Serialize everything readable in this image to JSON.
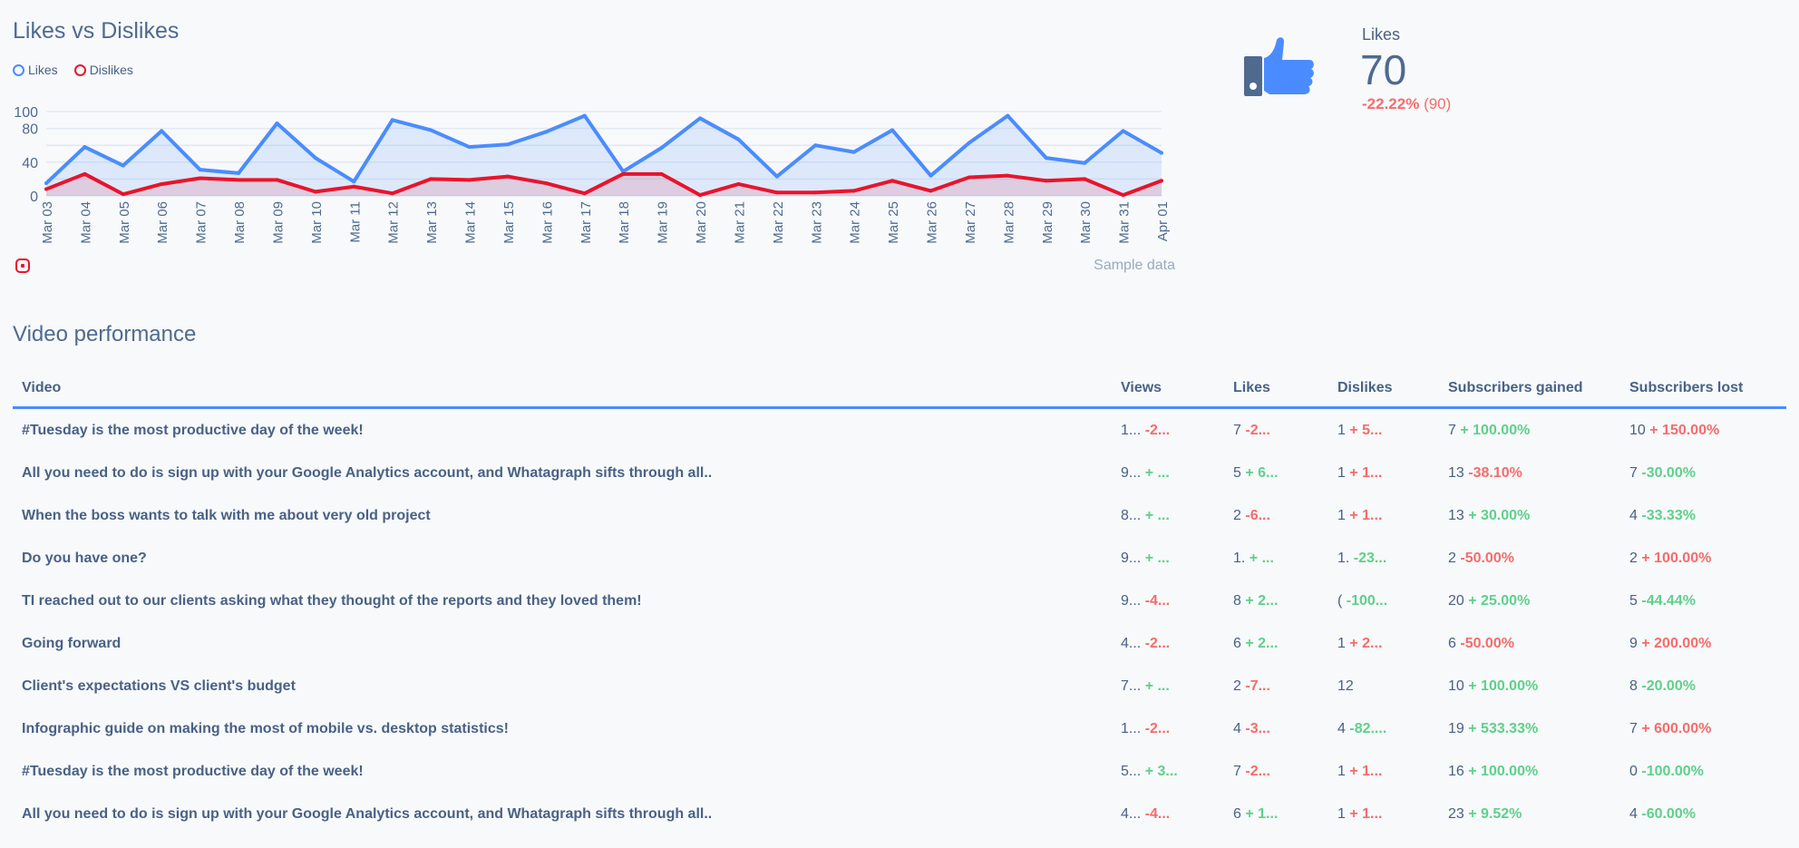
{
  "chart_data": {
    "type": "area",
    "title": "Likes vs Dislikes",
    "categories": [
      "Mar 03",
      "Mar 04",
      "Mar 05",
      "Mar 06",
      "Mar 07",
      "Mar 08",
      "Mar 09",
      "Mar 10",
      "Mar 11",
      "Mar 12",
      "Mar 13",
      "Mar 14",
      "Mar 15",
      "Mar 16",
      "Mar 17",
      "Mar 18",
      "Mar 19",
      "Mar 20",
      "Mar 21",
      "Mar 22",
      "Mar 23",
      "Mar 24",
      "Mar 25",
      "Mar 26",
      "Mar 27",
      "Mar 28",
      "Mar 29",
      "Mar 30",
      "Mar 31",
      "Apr 01"
    ],
    "series": [
      {
        "name": "Likes",
        "color": "#4a8cff",
        "values": [
          15,
          58,
          36,
          77,
          31,
          27,
          86,
          45,
          17,
          90,
          78,
          58,
          61,
          76,
          95,
          29,
          57,
          92,
          67,
          23,
          60,
          52,
          78,
          24,
          63,
          95,
          45,
          39,
          77,
          51
        ]
      },
      {
        "name": "Dislikes",
        "color": "#e8142c",
        "values": [
          8,
          26,
          2,
          14,
          21,
          19,
          19,
          5,
          11,
          3,
          20,
          19,
          23,
          15,
          3,
          26,
          26,
          1,
          14,
          4,
          4,
          6,
          18,
          6,
          22,
          24,
          18,
          20,
          1,
          18
        ]
      }
    ],
    "yticks": [
      0,
      40,
      80,
      100
    ],
    "gridlines": [
      0,
      20,
      40,
      60,
      80,
      100
    ],
    "ylim": [
      0,
      100
    ],
    "grid": true,
    "legend": "top-left",
    "note": "Sample data"
  },
  "source_icon": "youtube-icon",
  "kpi": {
    "icon": "thumbs-up-icon",
    "label": "Likes",
    "value": "70",
    "change": "-22.22%",
    "previous": "(90)"
  },
  "table": {
    "title": "Video performance",
    "columns": [
      "Video",
      "Views",
      "Likes",
      "Dislikes",
      "Subscribers gained",
      "Subscribers lost"
    ],
    "rows": [
      [
        "#Tuesday is the most productive day of the week!",
        [
          "1...",
          "-2...",
          "neg"
        ],
        [
          "7",
          "-2...",
          "neg"
        ],
        [
          "1",
          "+ 5...",
          "neg"
        ],
        [
          "7",
          "+ 100.00%",
          "pos"
        ],
        [
          "10",
          "+ 150.00%",
          "neg"
        ]
      ],
      [
        "All you need to do is sign up with your Google Analytics account, and Whatagraph sifts through all..",
        [
          "9...",
          "+ ...",
          "pos"
        ],
        [
          "5",
          "+ 6...",
          "pos"
        ],
        [
          "1",
          "+ 1...",
          "neg"
        ],
        [
          "13",
          "-38.10%",
          "neg"
        ],
        [
          "7",
          "-30.00%",
          "pos"
        ]
      ],
      [
        "When the boss wants to talk with me about very old project",
        [
          "8...",
          "+ ...",
          "pos"
        ],
        [
          "2",
          "-6...",
          "neg"
        ],
        [
          "1",
          "+ 1...",
          "neg"
        ],
        [
          "13",
          "+ 30.00%",
          "pos"
        ],
        [
          "4",
          "-33.33%",
          "pos"
        ]
      ],
      [
        "Do you have one?",
        [
          "9...",
          "+ ...",
          "pos"
        ],
        [
          "1.",
          "+ ...",
          "pos"
        ],
        [
          "1.",
          "-23...",
          "pos"
        ],
        [
          "2",
          "-50.00%",
          "neg"
        ],
        [
          "2",
          "+ 100.00%",
          "neg"
        ]
      ],
      [
        "TI reached out to our clients asking what they thought of the reports and they loved them!",
        [
          "9...",
          "-4...",
          "neg"
        ],
        [
          "8",
          "+ 2...",
          "pos"
        ],
        [
          "(",
          "-100...",
          "pos"
        ],
        [
          "20",
          "+ 25.00%",
          "pos"
        ],
        [
          "5",
          "-44.44%",
          "pos"
        ]
      ],
      [
        "Going forward",
        [
          "4...",
          "-2...",
          "neg"
        ],
        [
          "6",
          "+ 2...",
          "pos"
        ],
        [
          "1",
          "+ 2...",
          "neg"
        ],
        [
          "6",
          "-50.00%",
          "neg"
        ],
        [
          "9",
          "+ 200.00%",
          "neg"
        ]
      ],
      [
        "Client's expectations VS client's budget",
        [
          "7...",
          "+ ...",
          "pos"
        ],
        [
          "2",
          "-7...",
          "neg"
        ],
        [
          "12",
          "",
          ""
        ],
        [
          "10",
          "+ 100.00%",
          "pos"
        ],
        [
          "8",
          "-20.00%",
          "pos"
        ]
      ],
      [
        "Infographic guide on making the most of mobile vs. desktop statistics!",
        [
          "1...",
          "-2...",
          "neg"
        ],
        [
          "4",
          "-3...",
          "neg"
        ],
        [
          "4",
          "-82....",
          "pos"
        ],
        [
          "19",
          "+ 533.33%",
          "pos"
        ],
        [
          "7",
          "+ 600.00%",
          "neg"
        ]
      ],
      [
        "#Tuesday is the most productive day of the week!",
        [
          "5...",
          "+ 3...",
          "pos"
        ],
        [
          "7",
          "-2...",
          "neg"
        ],
        [
          "1",
          "+ 1...",
          "neg"
        ],
        [
          "16",
          "+ 100.00%",
          "pos"
        ],
        [
          "0",
          "-100.00%",
          "pos"
        ]
      ],
      [
        "All you need to do is sign up with your Google Analytics account, and Whatagraph sifts through all..",
        [
          "4...",
          "-4...",
          "neg"
        ],
        [
          "6",
          "+ 1...",
          "pos"
        ],
        [
          "1",
          "+ 1...",
          "neg"
        ],
        [
          "23",
          "+ 9.52%",
          "pos"
        ],
        [
          "4",
          "-60.00%",
          "pos"
        ]
      ]
    ]
  }
}
